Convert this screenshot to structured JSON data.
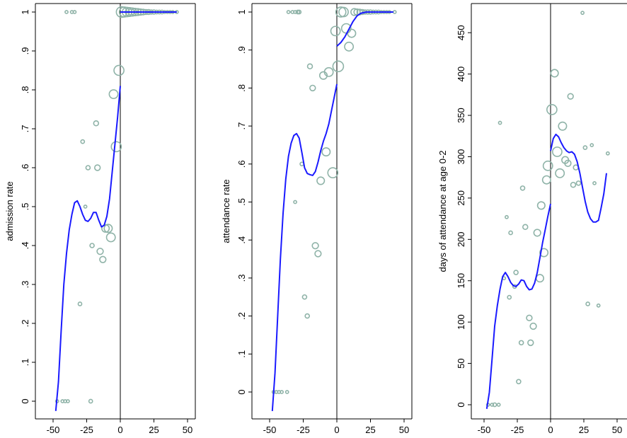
{
  "colors": {
    "points": "#8fb3a8",
    "fit": "#1a1aff",
    "axis": "#000000",
    "cutoff": "#000000"
  },
  "chart_data": [
    {
      "type": "scatter",
      "ylabel": "admission rate",
      "xlim": [
        -50,
        50
      ],
      "ylim": [
        0,
        1
      ],
      "xticks": [
        -50,
        -25,
        0,
        25,
        50
      ],
      "xtick_labels": [
        "-50",
        "-25",
        "0",
        "25",
        "50"
      ],
      "yticks": [
        0,
        0.1,
        0.2,
        0.3,
        0.4,
        0.5,
        0.6,
        0.7,
        0.8,
        0.9,
        1
      ],
      "ytick_labels": [
        "0",
        ".1",
        ".2",
        ".3",
        ".4",
        ".5",
        ".6",
        ".7",
        ".8",
        ".9",
        "1"
      ],
      "cutoff_x": 0,
      "points": [
        {
          "x": -47,
          "y": 0,
          "w": 1
        },
        {
          "x": -43,
          "y": 0,
          "w": 1
        },
        {
          "x": -41,
          "y": 0,
          "w": 1
        },
        {
          "x": -39,
          "y": 0,
          "w": 1
        },
        {
          "x": -22,
          "y": 0,
          "w": 1.5
        },
        {
          "x": -40,
          "y": 1,
          "w": 1
        },
        {
          "x": -36,
          "y": 1,
          "w": 1
        },
        {
          "x": -34,
          "y": 1,
          "w": 1
        },
        {
          "x": -30,
          "y": 0.25,
          "w": 1.5
        },
        {
          "x": -28,
          "y": 0.667,
          "w": 1.5
        },
        {
          "x": -26,
          "y": 0.5,
          "w": 1
        },
        {
          "x": -24,
          "y": 0.6,
          "w": 2
        },
        {
          "x": -21,
          "y": 0.4,
          "w": 2
        },
        {
          "x": -18,
          "y": 0.714,
          "w": 2.5
        },
        {
          "x": -17,
          "y": 0.6,
          "w": 3
        },
        {
          "x": -15,
          "y": 0.385,
          "w": 3.5
        },
        {
          "x": -13,
          "y": 0.364,
          "w": 3.5
        },
        {
          "x": -11,
          "y": 0.444,
          "w": 4.5
        },
        {
          "x": -9,
          "y": 0.444,
          "w": 5
        },
        {
          "x": -7,
          "y": 0.421,
          "w": 5.5
        },
        {
          "x": -5,
          "y": 0.789,
          "w": 5.5
        },
        {
          "x": -3,
          "y": 0.654,
          "w": 6.5
        },
        {
          "x": -1,
          "y": 0.85,
          "w": 6.5
        },
        {
          "x": 1,
          "y": 1,
          "w": 7
        },
        {
          "x": 3,
          "y": 1,
          "w": 6.5
        },
        {
          "x": 5,
          "y": 1,
          "w": 6
        },
        {
          "x": 7,
          "y": 1,
          "w": 5.5
        },
        {
          "x": 9,
          "y": 1,
          "w": 5
        },
        {
          "x": 11,
          "y": 1,
          "w": 4.5
        },
        {
          "x": 13,
          "y": 1,
          "w": 4
        },
        {
          "x": 15,
          "y": 1,
          "w": 3.5
        },
        {
          "x": 17,
          "y": 1,
          "w": 3
        },
        {
          "x": 19,
          "y": 1,
          "w": 2.5
        },
        {
          "x": 21,
          "y": 1,
          "w": 2.5
        },
        {
          "x": 23,
          "y": 1,
          "w": 2
        },
        {
          "x": 25,
          "y": 1,
          "w": 2
        },
        {
          "x": 27,
          "y": 1,
          "w": 1.5
        },
        {
          "x": 29,
          "y": 1,
          "w": 1.5
        },
        {
          "x": 31,
          "y": 1,
          "w": 1.5
        },
        {
          "x": 33,
          "y": 1,
          "w": 1
        },
        {
          "x": 35,
          "y": 1,
          "w": 1
        },
        {
          "x": 37,
          "y": 1,
          "w": 1
        },
        {
          "x": 39,
          "y": 1,
          "w": 1
        },
        {
          "x": 42,
          "y": 1,
          "w": 1
        }
      ],
      "fit_left": [
        [
          -48,
          -0.025
        ],
        [
          -46,
          0.05
        ],
        [
          -44,
          0.18
        ],
        [
          -42,
          0.3
        ],
        [
          -40,
          0.38
        ],
        [
          -38,
          0.44
        ],
        [
          -36,
          0.48
        ],
        [
          -34,
          0.51
        ],
        [
          -32,
          0.515
        ],
        [
          -30,
          0.5
        ],
        [
          -28,
          0.48
        ],
        [
          -26,
          0.465
        ],
        [
          -24,
          0.462
        ],
        [
          -22,
          0.47
        ],
        [
          -20,
          0.485
        ],
        [
          -18,
          0.485
        ],
        [
          -16,
          0.465
        ],
        [
          -14,
          0.448
        ],
        [
          -12,
          0.452
        ],
        [
          -10,
          0.475
        ],
        [
          -8,
          0.52
        ],
        [
          -6,
          0.59
        ],
        [
          -4,
          0.66
        ],
        [
          -2,
          0.73
        ],
        [
          0,
          0.81
        ]
      ],
      "fit_right": [
        [
          0,
          1
        ],
        [
          42,
          1
        ]
      ]
    },
    {
      "type": "scatter",
      "ylabel": "attendance rate",
      "xlim": [
        -50,
        50
      ],
      "ylim": [
        0,
        1
      ],
      "xticks": [
        -50,
        -25,
        0,
        25,
        50
      ],
      "xtick_labels": [
        "-50",
        "-25",
        "0",
        "25",
        "50"
      ],
      "yticks": [
        0,
        0.1,
        0.2,
        0.3,
        0.4,
        0.5,
        0.6,
        0.7,
        0.8,
        0.9,
        1
      ],
      "ytick_labels": [
        "0",
        ".1",
        ".2",
        ".3",
        ".4",
        ".5",
        ".6",
        ".7",
        ".8",
        ".9",
        "1"
      ],
      "cutoff_x": 0,
      "points": [
        {
          "x": -47,
          "y": 0,
          "w": 1
        },
        {
          "x": -45,
          "y": 0,
          "w": 1
        },
        {
          "x": -43,
          "y": 0,
          "w": 1
        },
        {
          "x": -41,
          "y": 0,
          "w": 1
        },
        {
          "x": -37,
          "y": 0,
          "w": 1
        },
        {
          "x": -36,
          "y": 1,
          "w": 1
        },
        {
          "x": -33,
          "y": 1,
          "w": 1
        },
        {
          "x": -31,
          "y": 1,
          "w": 1
        },
        {
          "x": -29,
          "y": 1,
          "w": 1.5
        },
        {
          "x": -28,
          "y": 1,
          "w": 1.5
        },
        {
          "x": -31,
          "y": 0.5,
          "w": 1
        },
        {
          "x": -26,
          "y": 0.6,
          "w": 1.5
        },
        {
          "x": -24,
          "y": 0.25,
          "w": 2
        },
        {
          "x": -22,
          "y": 0.2,
          "w": 2
        },
        {
          "x": -20,
          "y": 0.857,
          "w": 2.5
        },
        {
          "x": -18,
          "y": 0.8,
          "w": 3
        },
        {
          "x": -16,
          "y": 0.385,
          "w": 3.5
        },
        {
          "x": -14,
          "y": 0.364,
          "w": 3.5
        },
        {
          "x": -12,
          "y": 0.556,
          "w": 4.5
        },
        {
          "x": -10,
          "y": 0.833,
          "w": 4.5
        },
        {
          "x": -8,
          "y": 0.632,
          "w": 5
        },
        {
          "x": -6,
          "y": 0.842,
          "w": 5.5
        },
        {
          "x": -3,
          "y": 0.577,
          "w": 6.5
        },
        {
          "x": -1,
          "y": 0.95,
          "w": 6
        },
        {
          "x": 1,
          "y": 0.857,
          "w": 7
        },
        {
          "x": 3,
          "y": 1,
          "w": 6.5
        },
        {
          "x": 5,
          "y": 1,
          "w": 6
        },
        {
          "x": 7,
          "y": 0.957,
          "w": 6
        },
        {
          "x": 9,
          "y": 0.909,
          "w": 5.5
        },
        {
          "x": 11,
          "y": 0.944,
          "w": 5
        },
        {
          "x": 13,
          "y": 1,
          "w": 4
        },
        {
          "x": 15,
          "y": 1,
          "w": 3.5
        },
        {
          "x": 17,
          "y": 1,
          "w": 3
        },
        {
          "x": 19,
          "y": 1,
          "w": 2.5
        },
        {
          "x": 21,
          "y": 1,
          "w": 2
        },
        {
          "x": 23,
          "y": 1,
          "w": 2
        },
        {
          "x": 25,
          "y": 1,
          "w": 2
        },
        {
          "x": 27,
          "y": 1,
          "w": 1.5
        },
        {
          "x": 29,
          "y": 1,
          "w": 1.5
        },
        {
          "x": 31,
          "y": 1,
          "w": 1.5
        },
        {
          "x": 33,
          "y": 1,
          "w": 1
        },
        {
          "x": 35,
          "y": 1,
          "w": 1
        },
        {
          "x": 37,
          "y": 1,
          "w": 1
        },
        {
          "x": 39,
          "y": 1,
          "w": 1
        },
        {
          "x": 43,
          "y": 1,
          "w": 1
        }
      ],
      "fit_left": [
        [
          -48,
          -0.05
        ],
        [
          -46,
          0.05
        ],
        [
          -44,
          0.2
        ],
        [
          -42,
          0.35
        ],
        [
          -40,
          0.47
        ],
        [
          -38,
          0.56
        ],
        [
          -36,
          0.62
        ],
        [
          -34,
          0.655
        ],
        [
          -32,
          0.675
        ],
        [
          -30,
          0.68
        ],
        [
          -28,
          0.668
        ],
        [
          -26,
          0.63
        ],
        [
          -24,
          0.59
        ],
        [
          -22,
          0.575
        ],
        [
          -20,
          0.572
        ],
        [
          -18,
          0.57
        ],
        [
          -16,
          0.58
        ],
        [
          -14,
          0.605
        ],
        [
          -12,
          0.635
        ],
        [
          -10,
          0.66
        ],
        [
          -8,
          0.68
        ],
        [
          -6,
          0.705
        ],
        [
          -4,
          0.74
        ],
        [
          -2,
          0.775
        ],
        [
          0,
          0.81
        ]
      ],
      "fit_right": [
        [
          0,
          0.91
        ],
        [
          3,
          0.92
        ],
        [
          6,
          0.935
        ],
        [
          9,
          0.955
        ],
        [
          12,
          0.975
        ],
        [
          15,
          0.99
        ],
        [
          18,
          0.997
        ],
        [
          22,
          1
        ],
        [
          42,
          1
        ]
      ]
    },
    {
      "type": "scatter",
      "ylabel": "days of attendance at age 0-2",
      "xlim": [
        -50,
        50
      ],
      "ylim": [
        0,
        475
      ],
      "xticks": [
        -50,
        -25,
        0,
        25,
        50
      ],
      "xtick_labels": [
        "-50",
        "-25",
        "0",
        "25",
        "50"
      ],
      "yticks": [
        0,
        50,
        100,
        150,
        200,
        250,
        300,
        350,
        400,
        450
      ],
      "ytick_labels": [
        "0",
        "50",
        "100",
        "150",
        "200",
        "250",
        "300",
        "350",
        "400",
        "450"
      ],
      "cutoff_x": 0,
      "points": [
        {
          "x": -47,
          "y": 0,
          "w": 1
        },
        {
          "x": -44,
          "y": 0,
          "w": 1
        },
        {
          "x": -42,
          "y": 0,
          "w": 1.5
        },
        {
          "x": -39,
          "y": 0,
          "w": 1
        },
        {
          "x": -38,
          "y": 341,
          "w": 1
        },
        {
          "x": -35,
          "y": 153,
          "w": 1
        },
        {
          "x": -33,
          "y": 227,
          "w": 1
        },
        {
          "x": -31,
          "y": 130,
          "w": 1.5
        },
        {
          "x": -30,
          "y": 208,
          "w": 1.5
        },
        {
          "x": -27,
          "y": 143,
          "w": 1.5
        },
        {
          "x": -26,
          "y": 160,
          "w": 2
        },
        {
          "x": -24,
          "y": 28,
          "w": 2
        },
        {
          "x": -22,
          "y": 75,
          "w": 2
        },
        {
          "x": -21,
          "y": 262,
          "w": 2
        },
        {
          "x": -19,
          "y": 215,
          "w": 2.5
        },
        {
          "x": -16,
          "y": 105,
          "w": 3
        },
        {
          "x": -15,
          "y": 75,
          "w": 3
        },
        {
          "x": -13,
          "y": 95,
          "w": 3.5
        },
        {
          "x": -10,
          "y": 208,
          "w": 4
        },
        {
          "x": -8,
          "y": 153,
          "w": 4.5
        },
        {
          "x": -7,
          "y": 241,
          "w": 4.5
        },
        {
          "x": -5,
          "y": 184,
          "w": 5
        },
        {
          "x": -3,
          "y": 272,
          "w": 5
        },
        {
          "x": -2,
          "y": 289,
          "w": 6
        },
        {
          "x": 1,
          "y": 357,
          "w": 6.5
        },
        {
          "x": 3,
          "y": 401,
          "w": 4.5
        },
        {
          "x": 5,
          "y": 306,
          "w": 6
        },
        {
          "x": 7,
          "y": 280,
          "w": 5.5
        },
        {
          "x": 9,
          "y": 337,
          "w": 5
        },
        {
          "x": 11,
          "y": 296,
          "w": 4
        },
        {
          "x": 13,
          "y": 292,
          "w": 3.5
        },
        {
          "x": 15,
          "y": 373,
          "w": 3
        },
        {
          "x": 17,
          "y": 266,
          "w": 2.5
        },
        {
          "x": 19,
          "y": 287,
          "w": 2.5
        },
        {
          "x": 21,
          "y": 268,
          "w": 2
        },
        {
          "x": 24,
          "y": 474,
          "w": 1
        },
        {
          "x": 26,
          "y": 311,
          "w": 1.5
        },
        {
          "x": 28,
          "y": 122,
          "w": 1.5
        },
        {
          "x": 31,
          "y": 314,
          "w": 1
        },
        {
          "x": 33,
          "y": 268,
          "w": 1
        },
        {
          "x": 36,
          "y": 120,
          "w": 1
        },
        {
          "x": 43,
          "y": 304,
          "w": 1
        }
      ],
      "fit_left": [
        [
          -48,
          -5
        ],
        [
          -46,
          15
        ],
        [
          -44,
          55
        ],
        [
          -42,
          95
        ],
        [
          -40,
          120
        ],
        [
          -38,
          140
        ],
        [
          -36,
          155
        ],
        [
          -34,
          160
        ],
        [
          -32,
          155
        ],
        [
          -30,
          148
        ],
        [
          -28,
          144
        ],
        [
          -26,
          143
        ],
        [
          -24,
          146
        ],
        [
          -22,
          151
        ],
        [
          -20,
          150
        ],
        [
          -18,
          143
        ],
        [
          -16,
          139
        ],
        [
          -14,
          140
        ],
        [
          -12,
          147
        ],
        [
          -10,
          160
        ],
        [
          -8,
          178
        ],
        [
          -6,
          196
        ],
        [
          -4,
          212
        ],
        [
          -2,
          228
        ],
        [
          0,
          243
        ]
      ],
      "fit_right": [
        [
          0,
          307
        ],
        [
          2,
          322
        ],
        [
          4,
          327
        ],
        [
          6,
          324
        ],
        [
          8,
          317
        ],
        [
          10,
          311
        ],
        [
          12,
          307
        ],
        [
          14,
          305
        ],
        [
          16,
          306
        ],
        [
          18,
          303
        ],
        [
          20,
          294
        ],
        [
          22,
          280
        ],
        [
          24,
          263
        ],
        [
          26,
          246
        ],
        [
          28,
          233
        ],
        [
          30,
          225
        ],
        [
          32,
          221
        ],
        [
          34,
          221
        ],
        [
          36,
          223
        ],
        [
          38,
          238
        ],
        [
          40,
          255
        ],
        [
          42,
          280
        ]
      ]
    }
  ]
}
